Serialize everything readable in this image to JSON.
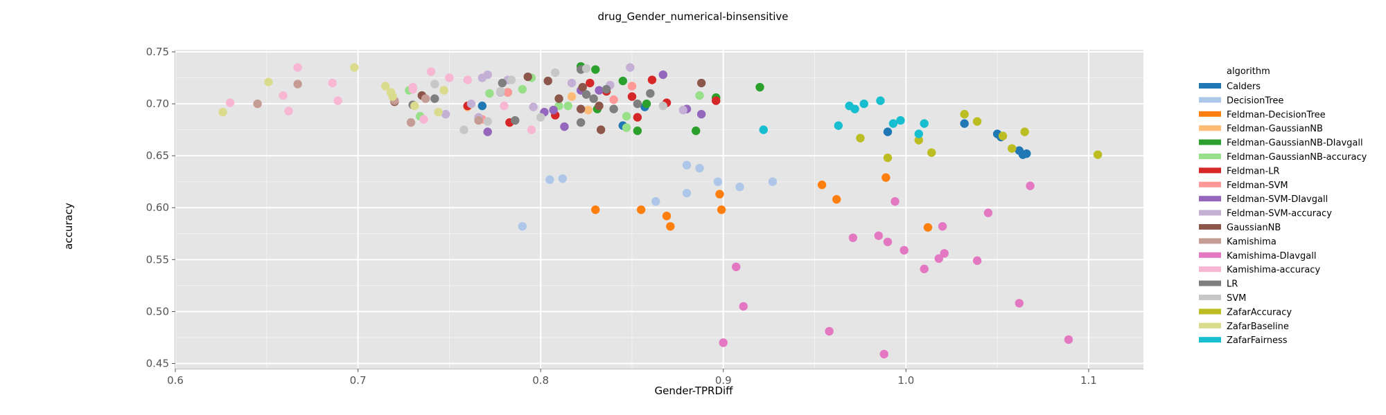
{
  "chart_data": {
    "type": "scatter",
    "title": "drug_Gender_numerical-binsensitive",
    "xlabel": "Gender-TPRDiff",
    "ylabel": "accuracy",
    "xlim": [
      0.6,
      1.13
    ],
    "ylim": [
      0.445,
      0.752
    ],
    "xticks": [
      0.6,
      0.7,
      0.8,
      0.9,
      1.0,
      1.1
    ],
    "xtick_labels": [
      "0.6",
      "0.7",
      "0.8",
      "0.9",
      "1.0",
      "1.1"
    ],
    "yticks": [
      0.45,
      0.5,
      0.55,
      0.6,
      0.65,
      0.7,
      0.75
    ],
    "ytick_labels": [
      "0.45",
      "0.50",
      "0.55",
      "0.60",
      "0.65",
      "0.70",
      "0.75"
    ],
    "grid": true,
    "legend_title": "algorithm",
    "legend_position": "right",
    "series": [
      {
        "name": "Calders",
        "color": "#1f77b4",
        "points": [
          [
            0.768,
            0.698
          ],
          [
            0.845,
            0.679
          ],
          [
            0.857,
            0.697
          ],
          [
            0.99,
            0.673
          ],
          [
            1.032,
            0.681
          ],
          [
            1.05,
            0.671
          ],
          [
            1.062,
            0.655
          ],
          [
            1.064,
            0.651
          ],
          [
            1.066,
            0.652
          ],
          [
            1.052,
            0.668
          ]
        ]
      },
      {
        "name": "DecisionTree",
        "color": "#aec7e8",
        "points": [
          [
            0.79,
            0.582
          ],
          [
            0.805,
            0.627
          ],
          [
            0.812,
            0.628
          ],
          [
            0.863,
            0.606
          ],
          [
            0.88,
            0.641
          ],
          [
            0.887,
            0.638
          ],
          [
            0.88,
            0.614
          ],
          [
            0.897,
            0.625
          ],
          [
            0.909,
            0.62
          ],
          [
            0.927,
            0.625
          ]
        ]
      },
      {
        "name": "Feldman-DecisionTree",
        "color": "#ff7f0e",
        "points": [
          [
            0.83,
            0.598
          ],
          [
            0.855,
            0.598
          ],
          [
            0.869,
            0.592
          ],
          [
            0.871,
            0.582
          ],
          [
            0.898,
            0.613
          ],
          [
            0.899,
            0.598
          ],
          [
            0.954,
            0.622
          ],
          [
            0.962,
            0.608
          ],
          [
            0.989,
            0.629
          ],
          [
            1.012,
            0.581
          ]
        ]
      },
      {
        "name": "Feldman-GaussianNB",
        "color": "#ffbb78",
        "points": [
          [
            0.76,
            0.697
          ],
          [
            0.817,
            0.707
          ],
          [
            0.826,
            0.694
          ],
          [
            0.85,
            0.717
          ]
        ]
      },
      {
        "name": "Feldman-GaussianNB-DIavgall",
        "color": "#2ca02c",
        "points": [
          [
            0.782,
            0.711
          ],
          [
            0.822,
            0.736
          ],
          [
            0.83,
            0.733
          ],
          [
            0.831,
            0.695
          ],
          [
            0.845,
            0.722
          ],
          [
            0.853,
            0.674
          ],
          [
            0.858,
            0.7
          ],
          [
            0.885,
            0.674
          ],
          [
            0.896,
            0.706
          ],
          [
            0.92,
            0.716
          ]
        ]
      },
      {
        "name": "Feldman-GaussianNB-accuracy",
        "color": "#98df8a",
        "points": [
          [
            0.728,
            0.713
          ],
          [
            0.734,
            0.688
          ],
          [
            0.772,
            0.71
          ],
          [
            0.79,
            0.714
          ],
          [
            0.795,
            0.725
          ],
          [
            0.81,
            0.698
          ],
          [
            0.815,
            0.698
          ],
          [
            0.847,
            0.677
          ],
          [
            0.887,
            0.708
          ],
          [
            0.847,
            0.688
          ]
        ]
      },
      {
        "name": "Feldman-LR",
        "color": "#d62728",
        "points": [
          [
            0.76,
            0.698
          ],
          [
            0.783,
            0.682
          ],
          [
            0.808,
            0.689
          ],
          [
            0.827,
            0.72
          ],
          [
            0.836,
            0.712
          ],
          [
            0.85,
            0.707
          ],
          [
            0.853,
            0.687
          ],
          [
            0.861,
            0.723
          ],
          [
            0.869,
            0.701
          ],
          [
            0.896,
            0.703
          ]
        ]
      },
      {
        "name": "Feldman-SVM",
        "color": "#ff9896",
        "points": [
          [
            0.768,
            0.685
          ],
          [
            0.782,
            0.711
          ],
          [
            0.84,
            0.704
          ],
          [
            0.85,
            0.717
          ]
        ]
      },
      {
        "name": "Feldman-SVM-DIavgall",
        "color": "#9467bd",
        "points": [
          [
            0.771,
            0.673
          ],
          [
            0.802,
            0.692
          ],
          [
            0.807,
            0.694
          ],
          [
            0.813,
            0.678
          ],
          [
            0.822,
            0.713
          ],
          [
            0.832,
            0.713
          ],
          [
            0.867,
            0.728
          ],
          [
            0.88,
            0.695
          ],
          [
            0.888,
            0.69
          ]
        ]
      },
      {
        "name": "Feldman-SVM-accuracy",
        "color": "#c5b0d5",
        "points": [
          [
            0.748,
            0.69
          ],
          [
            0.762,
            0.7
          ],
          [
            0.766,
            0.687
          ],
          [
            0.768,
            0.725
          ],
          [
            0.771,
            0.728
          ],
          [
            0.778,
            0.711
          ],
          [
            0.782,
            0.723
          ],
          [
            0.796,
            0.697
          ],
          [
            0.817,
            0.72
          ],
          [
            0.838,
            0.718
          ],
          [
            0.849,
            0.735
          ],
          [
            0.878,
            0.694
          ]
        ]
      },
      {
        "name": "GaussianNB",
        "color": "#8c564b",
        "points": [
          [
            0.72,
            0.702
          ],
          [
            0.735,
            0.708
          ],
          [
            0.793,
            0.726
          ],
          [
            0.804,
            0.722
          ],
          [
            0.81,
            0.705
          ],
          [
            0.822,
            0.695
          ],
          [
            0.823,
            0.716
          ],
          [
            0.832,
            0.698
          ],
          [
            0.833,
            0.675
          ],
          [
            0.888,
            0.72
          ]
        ]
      },
      {
        "name": "Kamishima",
        "color": "#c49c94",
        "points": [
          [
            0.645,
            0.7
          ],
          [
            0.667,
            0.719
          ],
          [
            0.72,
            0.703
          ],
          [
            0.729,
            0.682
          ],
          [
            0.737,
            0.705
          ],
          [
            0.766,
            0.684
          ]
        ]
      },
      {
        "name": "Kamishima-DIavgall",
        "color": "#e377c2",
        "points": [
          [
            0.9,
            0.47
          ],
          [
            0.907,
            0.543
          ],
          [
            0.911,
            0.505
          ],
          [
            0.958,
            0.481
          ],
          [
            0.971,
            0.571
          ],
          [
            0.985,
            0.573
          ],
          [
            0.988,
            0.459
          ],
          [
            0.99,
            0.567
          ],
          [
            0.994,
            0.606
          ],
          [
            0.999,
            0.559
          ],
          [
            1.01,
            0.541
          ],
          [
            1.018,
            0.551
          ],
          [
            1.02,
            0.582
          ],
          [
            1.021,
            0.556
          ],
          [
            1.039,
            0.549
          ],
          [
            1.045,
            0.595
          ],
          [
            1.062,
            0.508
          ],
          [
            1.068,
            0.621
          ],
          [
            1.089,
            0.473
          ]
        ]
      },
      {
        "name": "Kamishima-accuracy",
        "color": "#f7b6d2",
        "points": [
          [
            0.63,
            0.701
          ],
          [
            0.659,
            0.708
          ],
          [
            0.662,
            0.693
          ],
          [
            0.667,
            0.735
          ],
          [
            0.686,
            0.72
          ],
          [
            0.689,
            0.703
          ],
          [
            0.73,
            0.714
          ],
          [
            0.74,
            0.731
          ],
          [
            0.75,
            0.725
          ],
          [
            0.76,
            0.723
          ],
          [
            0.78,
            0.698
          ],
          [
            0.795,
            0.675
          ],
          [
            0.736,
            0.685
          ],
          [
            0.73,
            0.716
          ]
        ]
      },
      {
        "name": "LR",
        "color": "#7f7f7f",
        "points": [
          [
            0.73,
            0.699
          ],
          [
            0.742,
            0.705
          ],
          [
            0.779,
            0.72
          ],
          [
            0.786,
            0.684
          ],
          [
            0.822,
            0.733
          ],
          [
            0.825,
            0.709
          ],
          [
            0.829,
            0.705
          ],
          [
            0.836,
            0.714
          ],
          [
            0.84,
            0.695
          ],
          [
            0.853,
            0.7
          ],
          [
            0.86,
            0.71
          ],
          [
            0.822,
            0.682
          ]
        ]
      },
      {
        "name": "SVM",
        "color": "#c7c7c7",
        "points": [
          [
            0.742,
            0.719
          ],
          [
            0.758,
            0.675
          ],
          [
            0.771,
            0.683
          ],
          [
            0.778,
            0.712
          ],
          [
            0.784,
            0.723
          ],
          [
            0.8,
            0.687
          ],
          [
            0.808,
            0.73
          ],
          [
            0.825,
            0.734
          ],
          [
            0.867,
            0.698
          ]
        ]
      },
      {
        "name": "ZafarAccuracy",
        "color": "#bcbd22",
        "points": [
          [
            0.975,
            0.667
          ],
          [
            0.99,
            0.648
          ],
          [
            1.007,
            0.665
          ],
          [
            1.014,
            0.653
          ],
          [
            1.032,
            0.69
          ],
          [
            1.039,
            0.683
          ],
          [
            1.053,
            0.669
          ],
          [
            1.058,
            0.657
          ],
          [
            1.065,
            0.673
          ],
          [
            1.105,
            0.651
          ]
        ]
      },
      {
        "name": "ZafarBaseline",
        "color": "#dbdb8d",
        "points": [
          [
            0.626,
            0.692
          ],
          [
            0.651,
            0.721
          ],
          [
            0.698,
            0.735
          ],
          [
            0.715,
            0.717
          ],
          [
            0.718,
            0.711
          ],
          [
            0.719,
            0.707
          ],
          [
            0.731,
            0.698
          ],
          [
            0.744,
            0.692
          ],
          [
            0.747,
            0.713
          ]
        ]
      },
      {
        "name": "ZafarFairness",
        "color": "#17becf",
        "points": [
          [
            0.922,
            0.675
          ],
          [
            0.963,
            0.679
          ],
          [
            0.969,
            0.698
          ],
          [
            0.972,
            0.695
          ],
          [
            0.977,
            0.7
          ],
          [
            0.986,
            0.703
          ],
          [
            0.993,
            0.681
          ],
          [
            0.997,
            0.684
          ],
          [
            1.007,
            0.671
          ],
          [
            1.01,
            0.681
          ]
        ]
      }
    ]
  }
}
